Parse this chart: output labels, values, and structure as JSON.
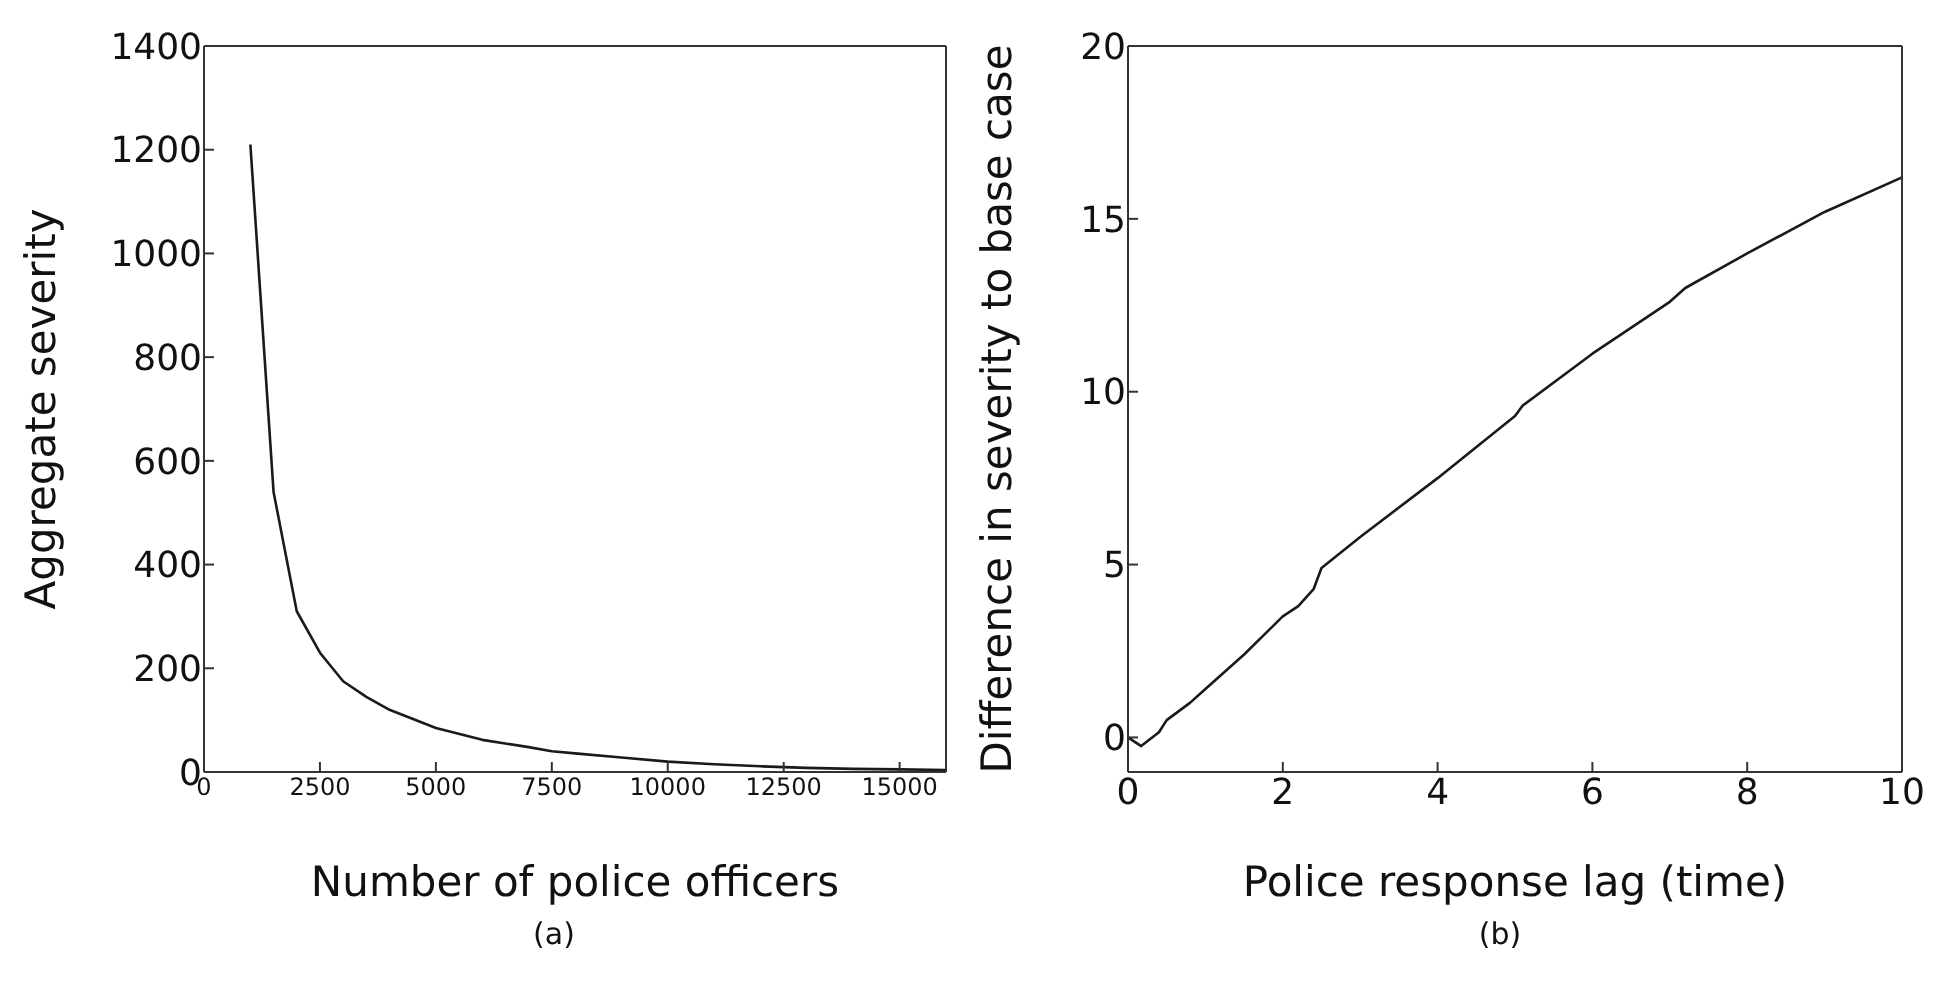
{
  "chart_data": [
    {
      "type": "line",
      "xlabel": "Number of police officers",
      "ylabel": "Aggregate severity",
      "annotations": [
        "(a)"
      ],
      "x": [
        1000,
        1500,
        2000,
        2500,
        3000,
        3500,
        4000,
        5000,
        6000,
        7000,
        7500,
        8000,
        9000,
        10000,
        11000,
        12000,
        13000,
        14000,
        15000,
        16000
      ],
      "series": [
        {
          "color": "#1a1a1a",
          "values": [
            1210,
            540,
            310,
            230,
            175,
            145,
            120,
            85,
            62,
            48,
            40,
            36,
            28,
            20,
            15,
            11,
            8,
            6,
            5,
            4
          ]
        }
      ],
      "xlim": [
        0,
        16000
      ],
      "xticks": [
        0,
        2500,
        5000,
        7500,
        10000,
        12500,
        15000
      ],
      "ylim": [
        0,
        1400
      ],
      "yticks": [
        0,
        200,
        400,
        600,
        800,
        1000,
        1200,
        1400
      ],
      "grid": false,
      "legend": false
    },
    {
      "type": "line",
      "xlabel": "Police response lag (time)",
      "ylabel": "Difference in severity to base case",
      "annotations": [
        "(b)"
      ],
      "x": [
        0,
        0.17,
        0.4,
        0.5,
        0.8,
        1,
        1.5,
        2,
        2.2,
        2.4,
        2.5,
        3,
        4,
        5,
        5.1,
        6,
        7,
        7.2,
        8,
        9,
        10
      ],
      "series": [
        {
          "color": "#1a1a1a",
          "values": [
            0,
            -0.25,
            0.15,
            0.5,
            1.0,
            1.4,
            2.4,
            3.5,
            3.8,
            4.3,
            4.9,
            5.8,
            7.5,
            9.3,
            9.6,
            11.1,
            12.6,
            13.0,
            14.0,
            15.2,
            16.2
          ]
        }
      ],
      "xlim": [
        0,
        10
      ],
      "xticks": [
        0,
        2,
        4,
        6,
        8,
        10
      ],
      "ylim": [
        -1,
        20
      ],
      "yticks": [
        0,
        5,
        10,
        15,
        20
      ],
      "grid": false,
      "legend": false
    }
  ]
}
